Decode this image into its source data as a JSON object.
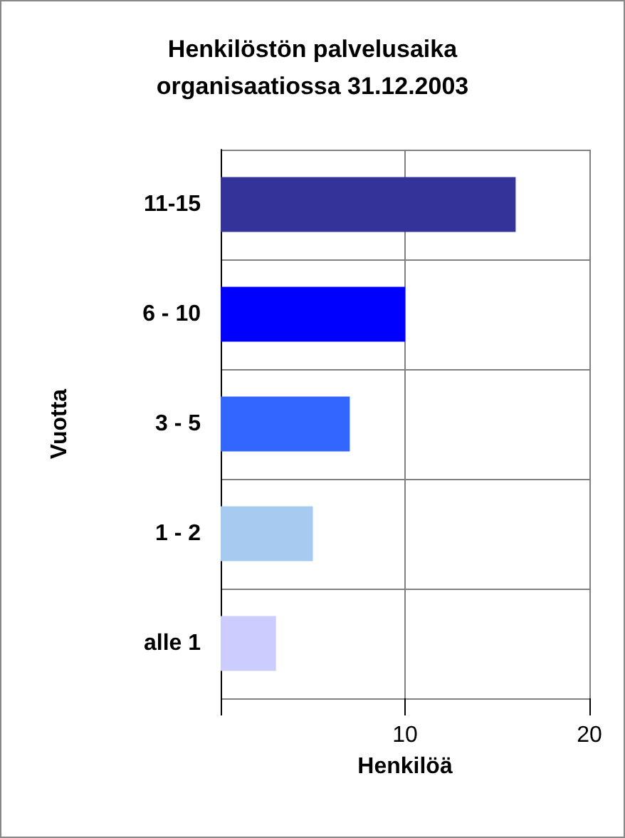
{
  "chart_data": {
    "type": "bar",
    "orientation": "horizontal",
    "title": "Henkilöstön palvelusaika organisaatiossa 31.12.2003",
    "xlabel": "Henkilöä",
    "ylabel": "Vuotta",
    "categories": [
      "11-15",
      "6 - 10",
      "3 - 5",
      "1 - 2",
      "alle 1"
    ],
    "values": [
      16,
      10,
      7,
      5,
      3
    ],
    "colors": [
      "#333399",
      "#0000ff",
      "#3366ff",
      "#a6caf0",
      "#ccccff"
    ],
    "xlim": [
      0,
      20
    ],
    "xticks": [
      {
        "value": 0,
        "label": null
      },
      10,
      20
    ],
    "grid": true
  }
}
